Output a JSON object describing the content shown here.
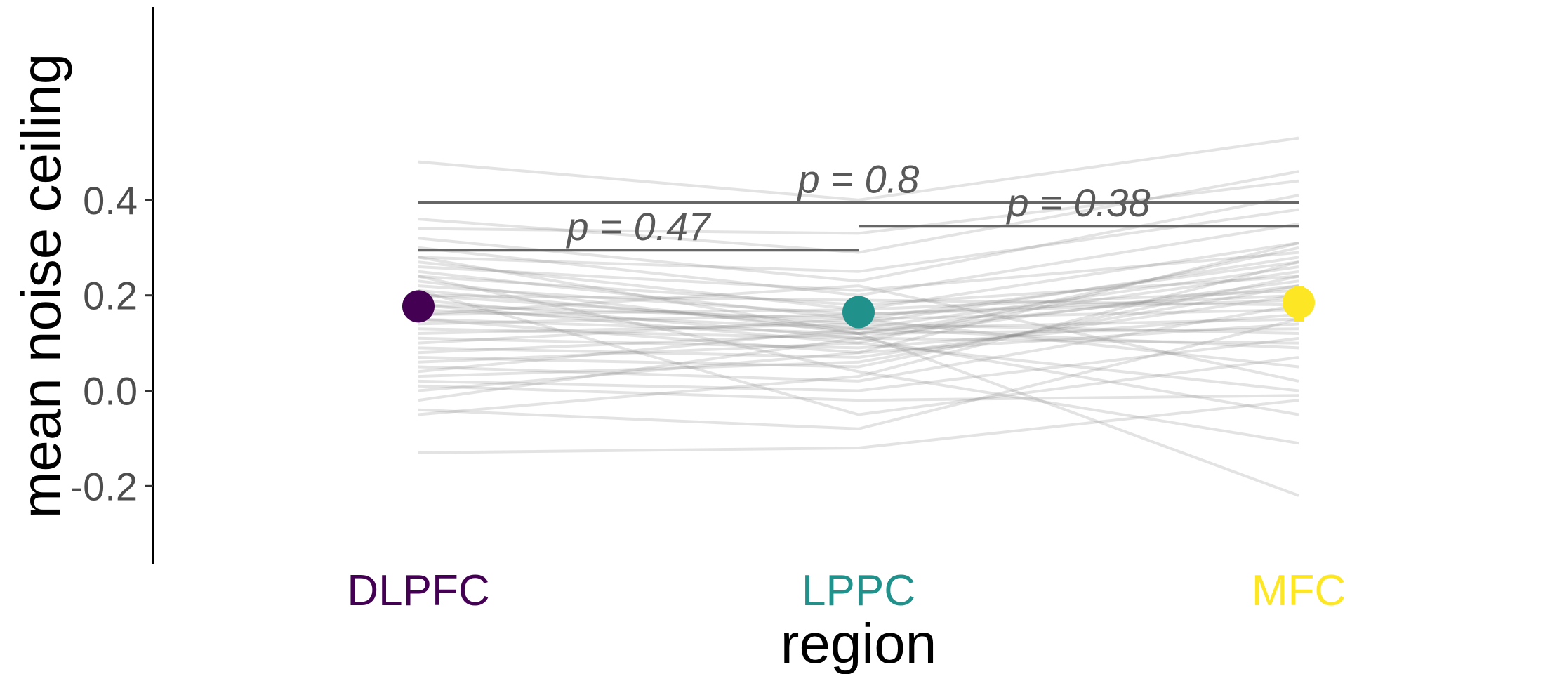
{
  "chart_data": {
    "type": "line",
    "categories": [
      "DLPFC",
      "LPPC",
      "MFC"
    ],
    "category_colors": [
      "#440154",
      "#21918c",
      "#fde725"
    ],
    "xlabel": "region",
    "ylabel": "mean noise ceiling",
    "ylim": [
      -0.255,
      0.57
    ],
    "yticks": [
      {
        "value": 0.4,
        "label": "0.4"
      },
      {
        "value": 0.2,
        "label": "0.2"
      },
      {
        "value": 0.0,
        "label": "0.0"
      },
      {
        "value": -0.2,
        "label": "-0.2"
      }
    ],
    "grid": false,
    "legend": "none",
    "means": [
      {
        "category": "DLPFC",
        "value": 0.177,
        "lower": 0.155,
        "upper": 0.205
      },
      {
        "category": "LPPC",
        "value": 0.165,
        "lower": 0.14,
        "upper": 0.195
      },
      {
        "category": "MFC",
        "value": 0.185,
        "lower": 0.145,
        "upper": 0.22
      }
    ],
    "significance": [
      {
        "from": "DLPFC",
        "to": "LPPC",
        "y": 0.295,
        "label": "p = 0.47"
      },
      {
        "from": "DLPFC",
        "to": "MFC",
        "y": 0.395,
        "label": "p = 0.8"
      },
      {
        "from": "LPPC",
        "to": "MFC",
        "y": 0.345,
        "label": "p = 0.38"
      }
    ],
    "subjects": [
      [
        0.48,
        0.4,
        0.53
      ],
      [
        0.36,
        0.29,
        0.46
      ],
      [
        0.34,
        0.33,
        0.44
      ],
      [
        0.32,
        0.23,
        0.41
      ],
      [
        0.3,
        0.2,
        0.35
      ],
      [
        0.28,
        0.25,
        0.38
      ],
      [
        0.27,
        0.17,
        0.31
      ],
      [
        0.26,
        0.21,
        0.29
      ],
      [
        0.25,
        0.15,
        0.27
      ],
      [
        0.24,
        0.18,
        0.24
      ],
      [
        0.23,
        0.12,
        0.22
      ],
      [
        0.22,
        0.16,
        0.2
      ],
      [
        0.21,
        0.13,
        0.26
      ],
      [
        0.2,
        0.19,
        0.18
      ],
      [
        0.2,
        0.14,
        0.12
      ],
      [
        0.19,
        0.11,
        0.23
      ],
      [
        0.18,
        0.15,
        0.17
      ],
      [
        0.18,
        0.1,
        0.3
      ],
      [
        0.17,
        0.13,
        0.15
      ],
      [
        0.16,
        0.17,
        0.21
      ],
      [
        0.15,
        0.12,
        0.25
      ],
      [
        0.15,
        0.08,
        0.14
      ],
      [
        0.14,
        0.16,
        0.19
      ],
      [
        0.13,
        0.11,
        0.1
      ],
      [
        0.12,
        0.14,
        0.28
      ],
      [
        0.11,
        0.09,
        0.16
      ],
      [
        0.1,
        0.15,
        0.05
      ],
      [
        0.09,
        0.07,
        0.2
      ],
      [
        0.08,
        0.12,
        0.13
      ],
      [
        0.07,
        0.05,
        0.24
      ],
      [
        0.06,
        0.1,
        0.0
      ],
      [
        0.05,
        0.02,
        0.18
      ],
      [
        0.04,
        0.13,
        0.09
      ],
      [
        0.03,
        0.06,
        0.22
      ],
      [
        0.02,
        0.0,
        0.11
      ],
      [
        0.01,
        -0.02,
        -0.01
      ],
      [
        0.0,
        0.08,
        0.31
      ],
      [
        -0.02,
        0.11,
        -0.05
      ],
      [
        -0.04,
        -0.08,
        0.15
      ],
      [
        -0.05,
        0.03,
        0.27
      ],
      [
        0.24,
        0.04,
        -0.11
      ],
      [
        0.21,
        -0.05,
        0.07
      ],
      [
        0.28,
        0.12,
        -0.22
      ],
      [
        0.16,
        0.22,
        0.02
      ],
      [
        -0.13,
        -0.12,
        -0.02
      ]
    ]
  }
}
